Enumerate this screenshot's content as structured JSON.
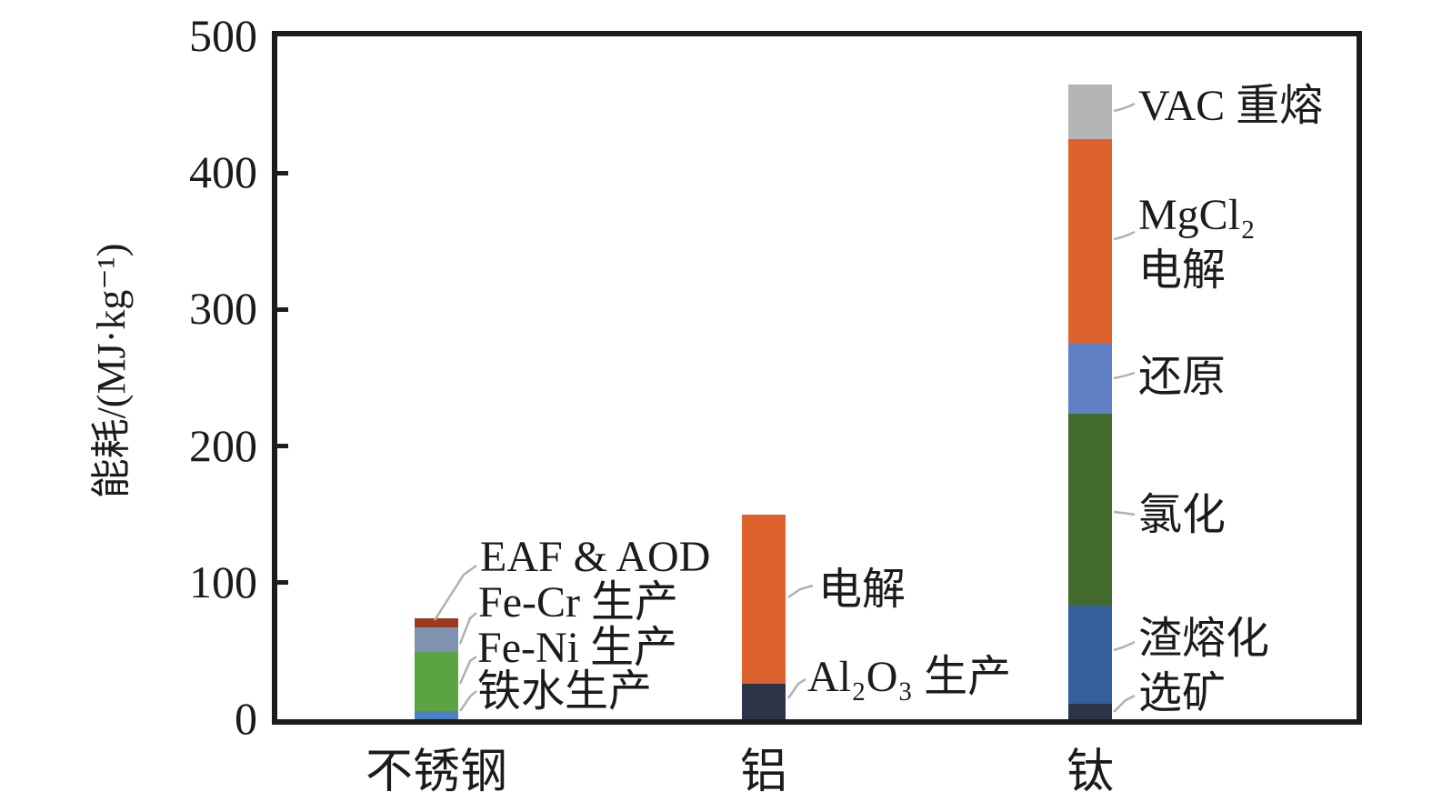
{
  "chart_data": {
    "type": "bar",
    "stacked": true,
    "title": "",
    "ylabel": "能耗/(MJ·kg⁻¹)",
    "xlabel": "",
    "ylim": [
      0,
      500
    ],
    "yticks": [
      0,
      100,
      200,
      300,
      400,
      500
    ],
    "grid": false,
    "legend": "none (segments labeled by leader-line annotations)",
    "categories": [
      "不锈钢",
      "铝",
      "钛"
    ],
    "bars": [
      {
        "category": "不锈钢",
        "segments": [
          {
            "label": "铁水生产",
            "value": 6,
            "color": "#4b82c5"
          },
          {
            "label": "Fe-Ni 生产",
            "value": 43,
            "color": "#5ca441"
          },
          {
            "label": "Fe-Cr 生产",
            "value": 18,
            "color": "#7e93b0"
          },
          {
            "label": "EAF & AOD",
            "value": 7,
            "color": "#9c3a20"
          }
        ]
      },
      {
        "category": "铝",
        "segments": [
          {
            "label": "Al₂O₃ 生产",
            "value": 26,
            "color": "#2c3448"
          },
          {
            "label": "电解",
            "value": 124,
            "color": "#dd622d"
          }
        ]
      },
      {
        "category": "钛",
        "segments": [
          {
            "label": "选矿",
            "value": 11,
            "color": "#2c3448"
          },
          {
            "label": "渣熔化",
            "value": 72,
            "color": "#35609a"
          },
          {
            "label": "氯化",
            "value": 141,
            "color": "#426a2d"
          },
          {
            "label": "还原",
            "value": 51,
            "color": "#6080c6"
          },
          {
            "label": "MgCl₂ 电解",
            "value": 150,
            "color": "#dd622d"
          },
          {
            "label": "VAC 重熔",
            "value": 40,
            "color": "#b5b5b5"
          }
        ]
      }
    ]
  },
  "annotations": [
    {
      "id": "eaf-aod",
      "lines": [
        "EAF & AOD"
      ]
    },
    {
      "id": "fe-cr",
      "lines": [
        "Fe-Cr 生产"
      ]
    },
    {
      "id": "fe-ni",
      "lines": [
        "Fe-Ni 生产"
      ]
    },
    {
      "id": "tieshui",
      "lines": [
        "铁水生产"
      ]
    },
    {
      "id": "al-dianjie",
      "lines": [
        "电解"
      ]
    },
    {
      "id": "al2o3",
      "lines": [
        "Al₂O₃ 生产"
      ]
    },
    {
      "id": "vac",
      "lines": [
        "VAC 重熔"
      ]
    },
    {
      "id": "mgcl2",
      "lines": [
        "MgCl₂",
        "电解"
      ]
    },
    {
      "id": "huanyuan",
      "lines": [
        "还原"
      ]
    },
    {
      "id": "lvhua",
      "lines": [
        "氯化"
      ]
    },
    {
      "id": "zharonghua",
      "lines": [
        "渣熔化"
      ]
    },
    {
      "id": "xuankuang",
      "lines": [
        "选矿"
      ]
    }
  ],
  "style": {
    "axis_color": "#1c1c1c",
    "leader_line_color": "#b0b0b0",
    "background": "#ffffff"
  }
}
